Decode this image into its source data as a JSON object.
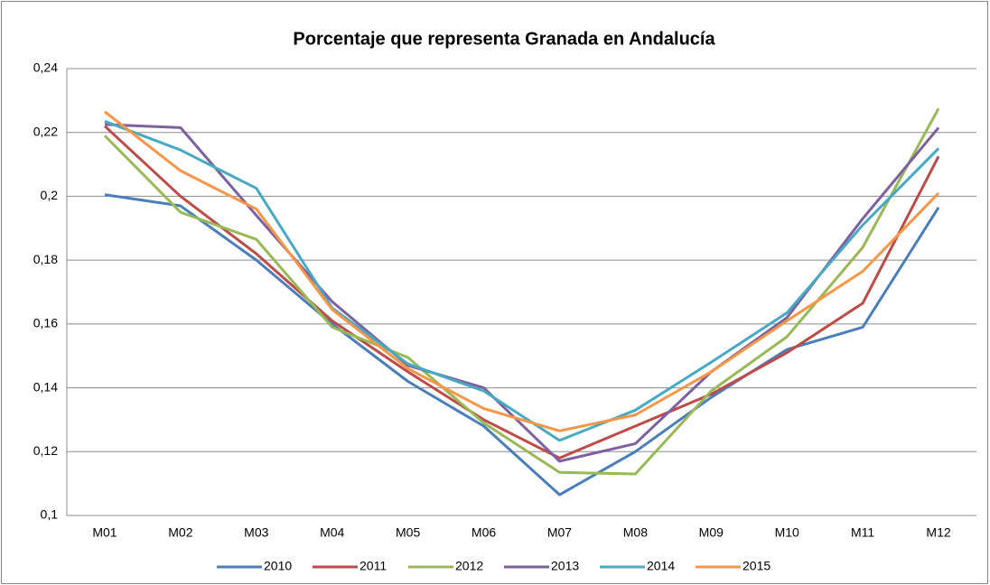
{
  "chart_data": {
    "type": "line",
    "title": "Porcentaje que representa Granada en Andalucía",
    "categories": [
      "M01",
      "M02",
      "M03",
      "M04",
      "M05",
      "M06",
      "M07",
      "M08",
      "M09",
      "M10",
      "M11",
      "M12"
    ],
    "series": [
      {
        "name": "2010",
        "color": "#4a7ebb",
        "values": [
          0.2005,
          0.197,
          0.18,
          0.16,
          0.142,
          0.128,
          0.1065,
          0.12,
          0.137,
          0.152,
          0.159,
          0.1965
        ]
      },
      {
        "name": "2011",
        "color": "#be4b48",
        "values": [
          0.222,
          0.2,
          0.182,
          0.161,
          0.145,
          0.13,
          0.118,
          0.128,
          0.138,
          0.151,
          0.1665,
          0.2125
        ]
      },
      {
        "name": "2012",
        "color": "#98b954",
        "values": [
          0.219,
          0.195,
          0.1865,
          0.159,
          0.1495,
          0.129,
          0.1135,
          0.113,
          0.139,
          0.156,
          0.184,
          0.2275
        ]
      },
      {
        "name": "2013",
        "color": "#7d60a0",
        "values": [
          0.2225,
          0.2215,
          0.194,
          0.167,
          0.147,
          0.14,
          0.117,
          0.1225,
          0.145,
          0.162,
          0.193,
          0.2215
        ]
      },
      {
        "name": "2014",
        "color": "#46aac5",
        "values": [
          0.2235,
          0.2145,
          0.2025,
          0.165,
          0.1475,
          0.139,
          0.1235,
          0.133,
          0.148,
          0.1635,
          0.191,
          0.215
        ]
      },
      {
        "name": "2015",
        "color": "#f79646",
        "values": [
          0.2265,
          0.208,
          0.196,
          0.1645,
          0.146,
          0.1335,
          0.1265,
          0.1315,
          0.145,
          0.161,
          0.1765,
          0.201
        ]
      }
    ],
    "ylim": [
      0.1,
      0.24
    ],
    "yticks": [
      {
        "value": 0.1,
        "label": "0,1"
      },
      {
        "value": 0.12,
        "label": "0,12"
      },
      {
        "value": 0.14,
        "label": "0,14"
      },
      {
        "value": 0.16,
        "label": "0,16"
      },
      {
        "value": 0.18,
        "label": "0,18"
      },
      {
        "value": 0.2,
        "label": "0,2"
      },
      {
        "value": 0.22,
        "label": "0,22"
      },
      {
        "value": 0.24,
        "label": "0,24"
      }
    ],
    "grid": true,
    "legend": "bottom"
  }
}
